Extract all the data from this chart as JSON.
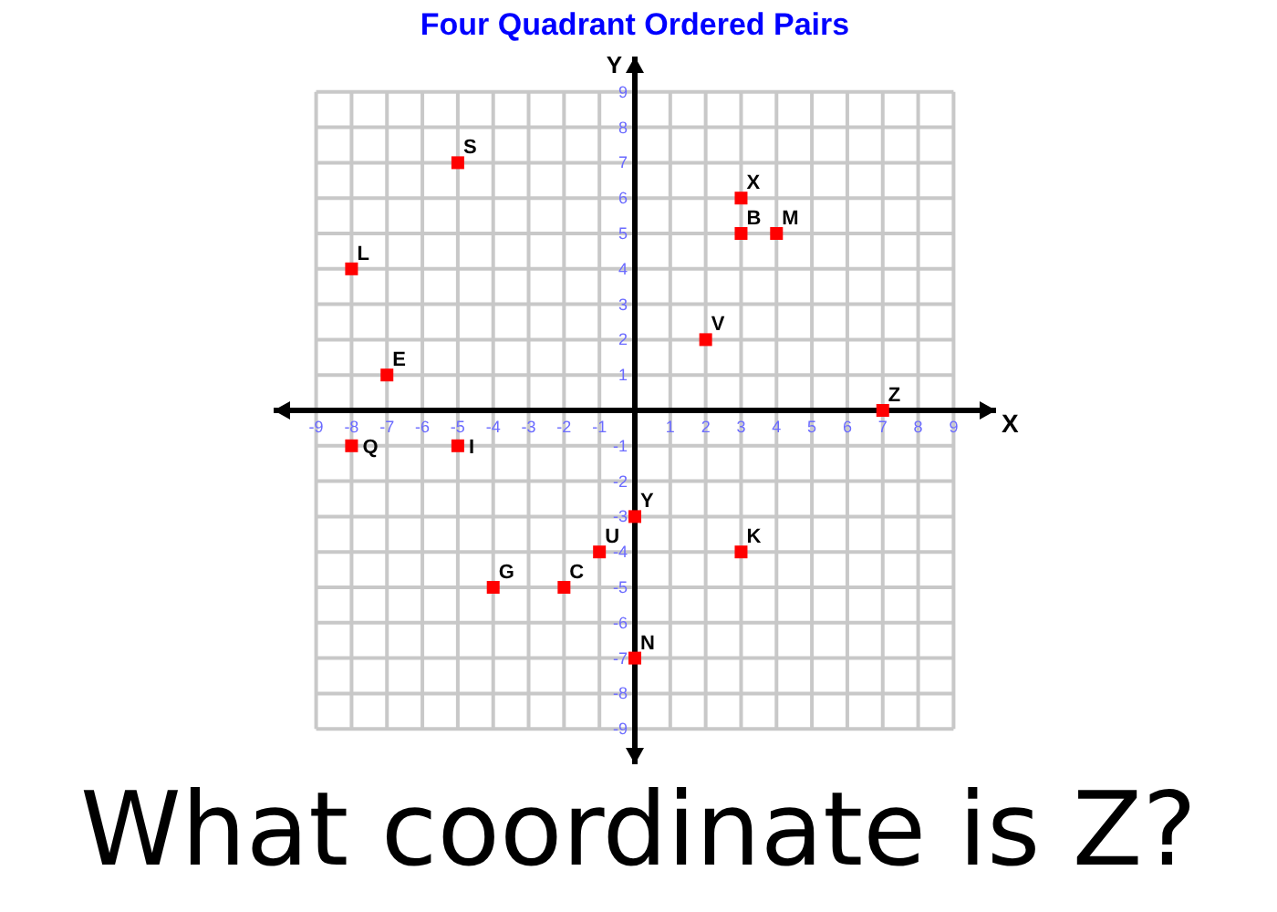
{
  "chart_data": {
    "type": "scatter",
    "title": "Four Quadrant Ordered Pairs",
    "xlabel": "X",
    "ylabel": "Y",
    "x": [
      -5,
      -8,
      -7,
      3,
      3,
      4,
      2,
      7,
      -8,
      -5,
      0,
      -1,
      -4,
      -2,
      3,
      0
    ],
    "values": [
      7,
      4,
      1,
      6,
      5,
      5,
      2,
      0,
      -1,
      -1,
      -3,
      -4,
      -5,
      -5,
      -4,
      -7
    ],
    "color": "#ff0000",
    "marker": "square",
    "grid": true,
    "xlim": [
      -10.2,
      10.2
    ],
    "ylim": [
      -10,
      10
    ],
    "xticks": [
      -9,
      -8,
      -7,
      -6,
      -5,
      -4,
      -3,
      -2,
      -1,
      1,
      2,
      3,
      4,
      5,
      6,
      7,
      8,
      9
    ],
    "yticks": [
      -9,
      -8,
      -7,
      -6,
      -5,
      -4,
      -3,
      -2,
      -1,
      1,
      2,
      3,
      4,
      5,
      6,
      7,
      8,
      9
    ],
    "annotations": [
      {
        "text": "S",
        "x": -5,
        "y": 7
      },
      {
        "text": "L",
        "x": -8,
        "y": 4
      },
      {
        "text": "E",
        "x": -7,
        "y": 1
      },
      {
        "text": "X",
        "x": 3,
        "y": 6
      },
      {
        "text": "B",
        "x": 3,
        "y": 5
      },
      {
        "text": "M",
        "x": 4,
        "y": 5
      },
      {
        "text": "V",
        "x": 2,
        "y": 2
      },
      {
        "text": "Z",
        "x": 7,
        "y": 0
      },
      {
        "text": "Q",
        "x": -8,
        "y": -1
      },
      {
        "text": "I",
        "x": -5,
        "y": -1
      },
      {
        "text": "Y",
        "x": 0,
        "y": -3
      },
      {
        "text": "U",
        "x": -1,
        "y": -4
      },
      {
        "text": "G",
        "x": -4,
        "y": -5
      },
      {
        "text": "C",
        "x": -2,
        "y": -5
      },
      {
        "text": "K",
        "x": 3,
        "y": -4
      },
      {
        "text": "N",
        "x": 0,
        "y": -7
      },
      "What coordinate is Z?"
    ]
  }
}
